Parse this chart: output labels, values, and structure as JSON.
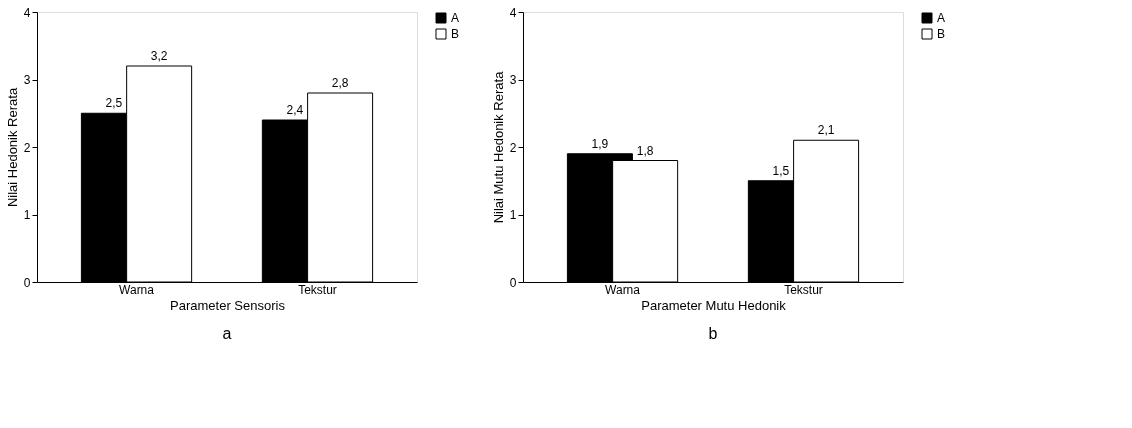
{
  "chart_data": [
    {
      "type": "bar",
      "xlabel": "Parameter Sensoris",
      "ylabel": "Nilai Hedonik Rerata",
      "categories": [
        "Warna",
        "Tekstur"
      ],
      "ylim": [
        0,
        4
      ],
      "yticks": [
        0,
        1,
        2,
        3,
        4
      ],
      "grid": false,
      "legend": "right",
      "annotations": [
        "a"
      ],
      "series": [
        {
          "name": "A",
          "color": "#000000",
          "values": [
            2.5,
            2.4
          ],
          "value_labels": [
            "2,5",
            "2,4"
          ]
        },
        {
          "name": "B",
          "color": "#ffffff",
          "values": [
            3.2,
            2.8
          ],
          "value_labels": [
            "3,2",
            "2,8"
          ]
        }
      ]
    },
    {
      "type": "bar",
      "xlabel": "Parameter Mutu Hedonik",
      "ylabel": "Nilai Mutu Hedonik Rerata",
      "categories": [
        "Warna",
        "Tekstur"
      ],
      "ylim": [
        0,
        4
      ],
      "yticks": [
        0,
        1,
        2,
        3,
        4
      ],
      "grid": false,
      "legend": "right",
      "annotations": [
        "b"
      ],
      "series": [
        {
          "name": "A",
          "color": "#000000",
          "values": [
            1.9,
            1.5
          ],
          "value_labels": [
            "1,9",
            "1,5"
          ]
        },
        {
          "name": "B",
          "color": "#ffffff",
          "values": [
            1.8,
            2.1
          ],
          "value_labels": [
            "1,8",
            "2,1"
          ]
        }
      ]
    }
  ]
}
